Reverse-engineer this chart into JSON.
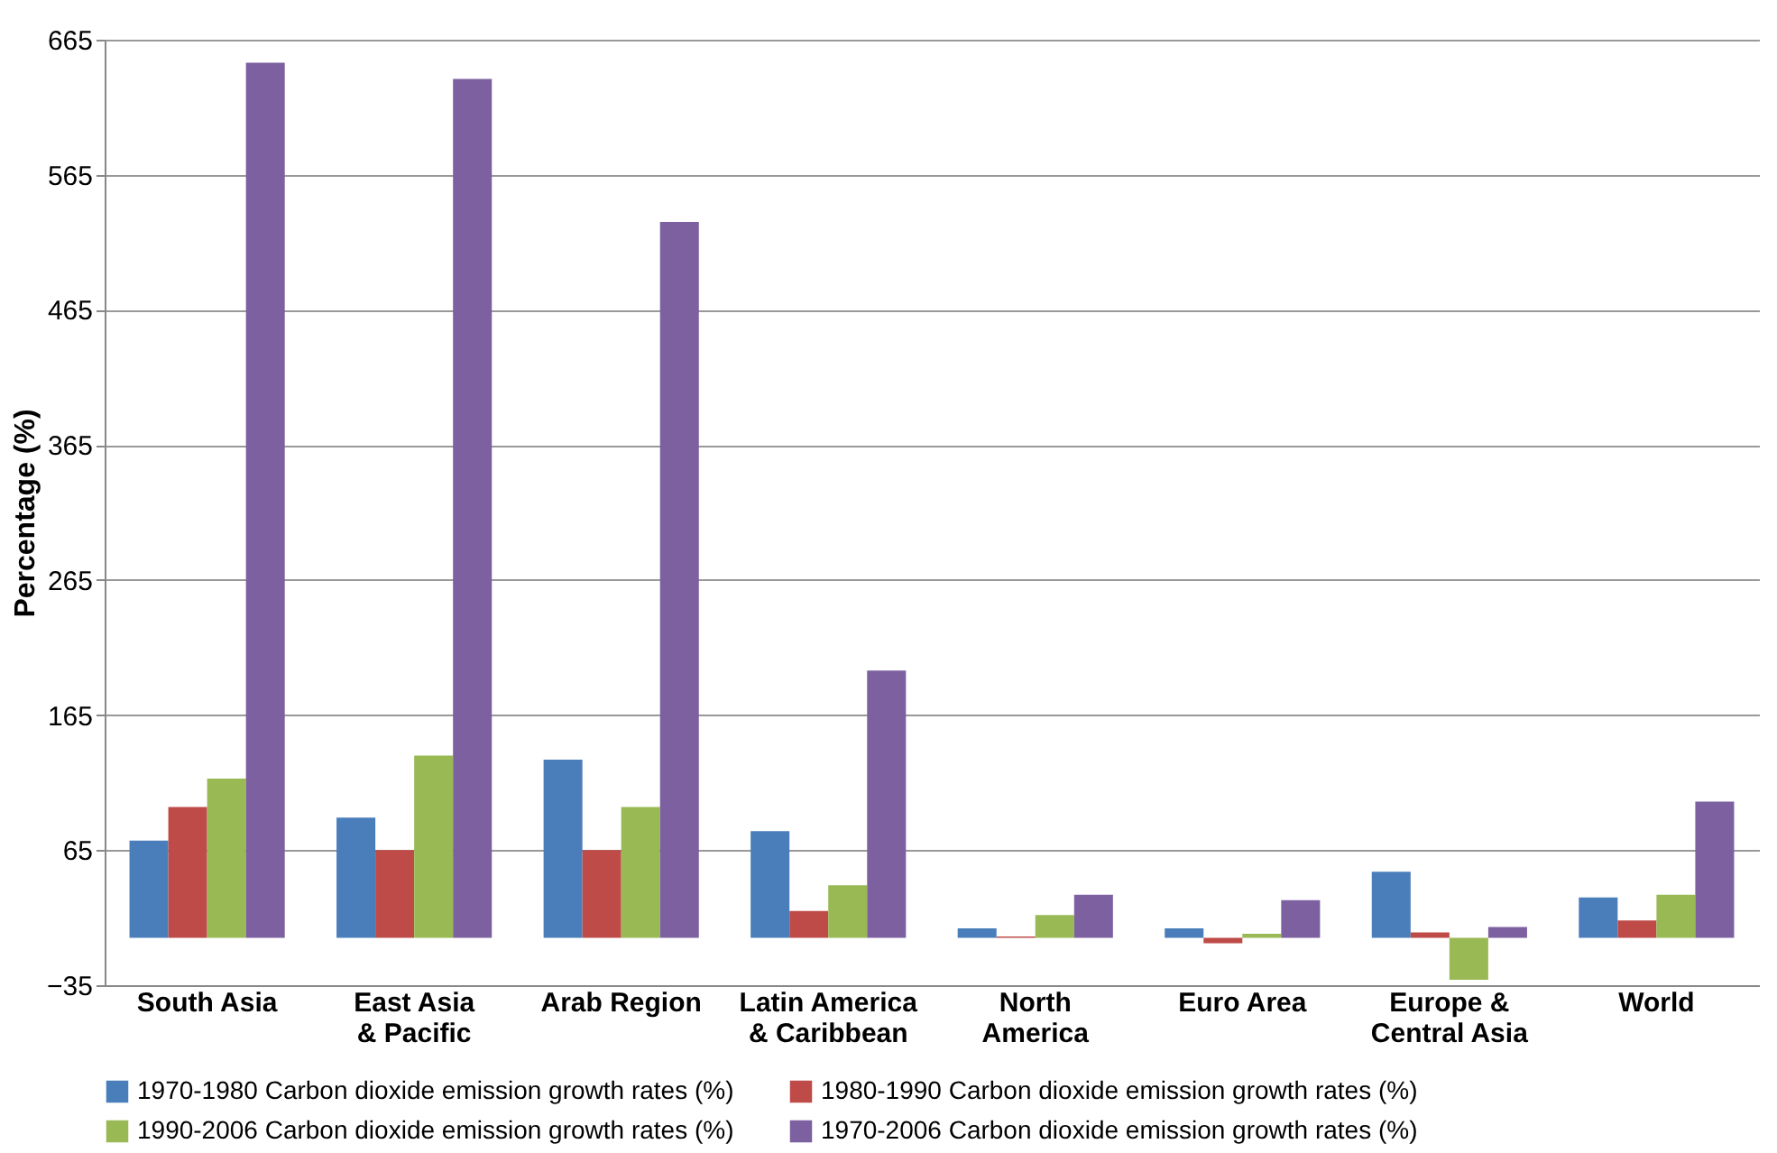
{
  "chart_data": {
    "type": "bar",
    "ylabel": "Percentage (%)",
    "categories": [
      "South Asia",
      "East Asia & Pacific",
      "Arab Region",
      "Latin America & Caribbean",
      "North America",
      "Euro Area",
      "Europe & Central Asia",
      "World"
    ],
    "series": [
      {
        "name": "1970-1980 Carbon dioxide emission growth rates (%)",
        "color": "#4a7ebb",
        "values": [
          72,
          89,
          132,
          79,
          7,
          7,
          49,
          30
        ]
      },
      {
        "name": "1980-1990 Carbon dioxide emission growth rates (%)",
        "color": "#be4b48",
        "values": [
          97,
          65,
          65,
          20,
          1,
          -4,
          4,
          13
        ]
      },
      {
        "name": "1990-2006 Carbon dioxide emission growth rates (%)",
        "color": "#98b954",
        "values": [
          118,
          135,
          97,
          39,
          17,
          3,
          -31,
          32
        ]
      },
      {
        "name": "1970-2006 Carbon dioxide emission growth rates (%)",
        "color": "#7d60a0",
        "values": [
          648,
          636,
          530,
          198,
          32,
          28,
          8,
          101
        ]
      }
    ],
    "ylim": [
      -35,
      665
    ],
    "yticks": [
      -35,
      65,
      165,
      265,
      365,
      465,
      565,
      665
    ],
    "grid": "y",
    "legend": "bottom"
  }
}
